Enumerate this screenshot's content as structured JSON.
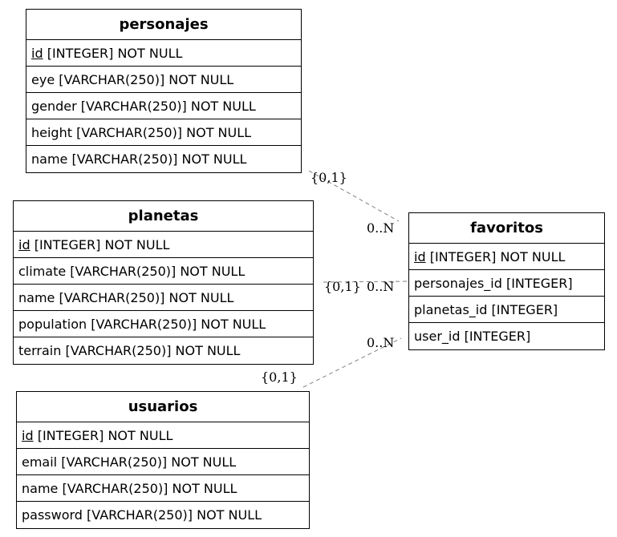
{
  "entities": {
    "personajes": {
      "title": "personajes",
      "rows": [
        {
          "pk": "id",
          "rest": " [INTEGER] NOT NULL"
        },
        {
          "pk": "",
          "rest": "eye [VARCHAR(250)] NOT NULL"
        },
        {
          "pk": "",
          "rest": "gender [VARCHAR(250)] NOT NULL"
        },
        {
          "pk": "",
          "rest": "height [VARCHAR(250)] NOT NULL"
        },
        {
          "pk": "",
          "rest": "name [VARCHAR(250)] NOT NULL"
        }
      ]
    },
    "planetas": {
      "title": "planetas",
      "rows": [
        {
          "pk": "id",
          "rest": " [INTEGER] NOT NULL"
        },
        {
          "pk": "",
          "rest": "climate [VARCHAR(250)] NOT NULL"
        },
        {
          "pk": "",
          "rest": "name [VARCHAR(250)] NOT NULL"
        },
        {
          "pk": "",
          "rest": "population [VARCHAR(250)] NOT NULL"
        },
        {
          "pk": "",
          "rest": "terrain [VARCHAR(250)] NOT NULL"
        }
      ]
    },
    "usuarios": {
      "title": "usuarios",
      "rows": [
        {
          "pk": "id",
          "rest": " [INTEGER] NOT NULL"
        },
        {
          "pk": "",
          "rest": "email [VARCHAR(250)] NOT NULL"
        },
        {
          "pk": "",
          "rest": "name [VARCHAR(250)] NOT NULL"
        },
        {
          "pk": "",
          "rest": "password [VARCHAR(250)] NOT NULL"
        }
      ]
    },
    "favoritos": {
      "title": "favoritos",
      "rows": [
        {
          "pk": "id",
          "rest": " [INTEGER] NOT NULL"
        },
        {
          "pk": "",
          "rest": "personajes_id [INTEGER]"
        },
        {
          "pk": "",
          "rest": "planetas_id [INTEGER]"
        },
        {
          "pk": "",
          "rest": "user_id [INTEGER]"
        }
      ]
    }
  },
  "relations": [
    {
      "from": "personajes",
      "to": "favoritos",
      "from_card": "{0,1}",
      "to_card": "0..N"
    },
    {
      "from": "planetas",
      "to": "favoritos",
      "from_card": "{0,1}",
      "to_card": "0..N"
    },
    {
      "from": "usuarios",
      "to": "favoritos",
      "from_card": "{0,1}",
      "to_card": "0..N"
    }
  ],
  "colors": {
    "edge": "#808080",
    "border": "#000000"
  }
}
